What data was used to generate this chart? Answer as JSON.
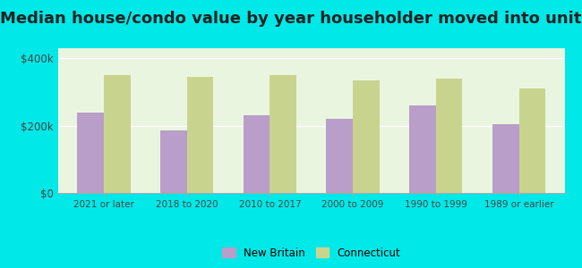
{
  "title": "Median house/condo value by year householder moved into unit",
  "categories": [
    "2021 or later",
    "2018 to 2020",
    "2010 to 2017",
    "2000 to 2009",
    "1990 to 1999",
    "1989 or earlier"
  ],
  "new_britain": [
    240000,
    185000,
    230000,
    220000,
    260000,
    205000
  ],
  "connecticut": [
    350000,
    345000,
    350000,
    335000,
    340000,
    310000
  ],
  "new_britain_color": "#b89ec8",
  "connecticut_color": "#c8d48e",
  "background_color": "#00e8e8",
  "plot_bg_gradient_left": "#e8f5e0",
  "plot_bg_gradient_right": "#f8fff4",
  "title_fontsize": 13,
  "ylabel_ticks": [
    0,
    200000,
    400000
  ],
  "ylabel_labels": [
    "$0",
    "$200k",
    "$400k"
  ],
  "legend_new_britain": "New Britain",
  "legend_connecticut": "Connecticut",
  "ylim": [
    0,
    430000
  ],
  "bar_width": 0.32
}
